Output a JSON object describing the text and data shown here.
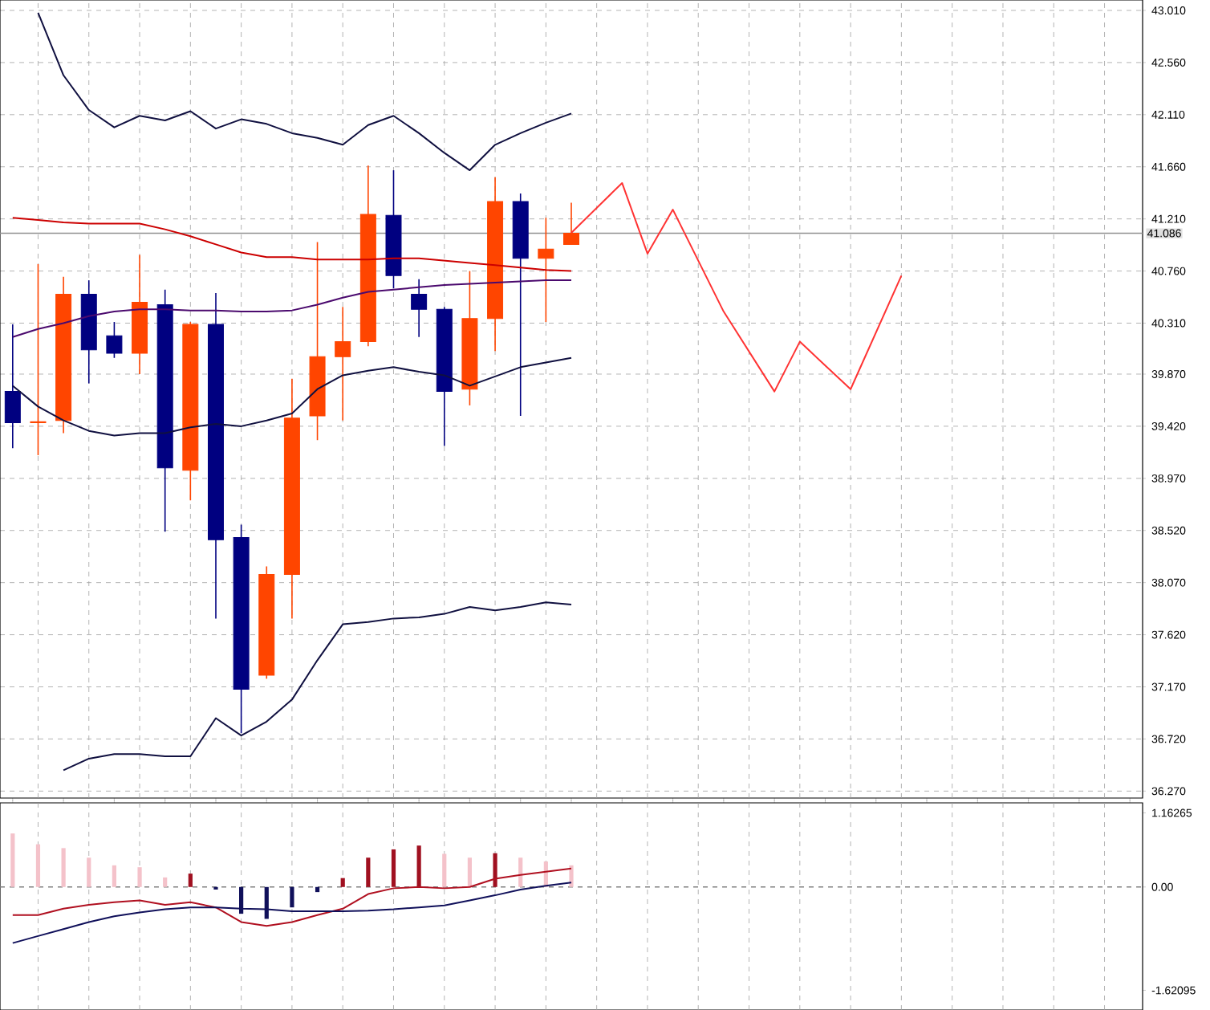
{
  "chart_data": [
    {
      "type": "candlestick",
      "categories": [
        null,
        null,
        null,
        null,
        null,
        null,
        null,
        null,
        null,
        null,
        null,
        null,
        null,
        null,
        null,
        null,
        null,
        null,
        null,
        null,
        null,
        null,
        null,
        null,
        null,
        null,
        null,
        null,
        null,
        null,
        null,
        null,
        null,
        null,
        null,
        null,
        null,
        null,
        null,
        null,
        null,
        null,
        null,
        null,
        null
      ],
      "ylim": [
        36.21,
        43.1
      ],
      "yticks": [
        {
          "value": 36.27,
          "label": "36.270"
        },
        {
          "value": 36.72,
          "label": "36.720"
        },
        {
          "value": 37.17,
          "label": "37.170"
        },
        {
          "value": 37.62,
          "label": "37.620"
        },
        {
          "value": 38.07,
          "label": "38.070"
        },
        {
          "value": 38.52,
          "label": "38.520"
        },
        {
          "value": 38.97,
          "label": "38.970"
        },
        {
          "value": 39.42,
          "label": "39.420"
        },
        {
          "value": 39.87,
          "label": "39.870"
        },
        {
          "value": 40.31,
          "label": "40.310"
        },
        {
          "value": 40.76,
          "label": "40.760"
        },
        {
          "value": 41.21,
          "label": "41.210"
        },
        {
          "value": 41.66,
          "label": "41.660"
        },
        {
          "value": 42.11,
          "label": "42.110"
        },
        {
          "value": 42.56,
          "label": "42.560"
        },
        {
          "value": 43.01,
          "label": "43.010"
        }
      ],
      "grid": true,
      "tick_labels": "y",
      "ref_lines": [
        {
          "axis": "y",
          "value": 41.086,
          "label": "41.086",
          "color": "#909090"
        }
      ],
      "series": [
        {
          "type": "line",
          "color": "#cc0000",
          "values": [
            41.22,
            41.2,
            41.18,
            41.17,
            41.17,
            41.17,
            41.12,
            41.06,
            40.99,
            40.92,
            40.88,
            40.88,
            40.86,
            40.86,
            40.86,
            40.87,
            40.87,
            40.85,
            40.83,
            40.81,
            40.79,
            40.77,
            40.76,
            null,
            null,
            null,
            null,
            null,
            null,
            null,
            null,
            null,
            null,
            null,
            null,
            null,
            null,
            null,
            null,
            null,
            null,
            null,
            null,
            null,
            null
          ]
        },
        {
          "type": "line",
          "color": "#4b0a6e",
          "values": [
            40.19,
            40.26,
            40.31,
            40.37,
            40.41,
            40.43,
            40.43,
            40.42,
            40.42,
            40.41,
            40.41,
            40.42,
            40.47,
            40.53,
            40.58,
            40.6,
            40.62,
            40.64,
            40.65,
            40.66,
            40.67,
            40.68,
            40.68,
            null,
            null,
            null,
            null,
            null,
            null,
            null,
            null,
            null,
            null,
            null,
            null,
            null,
            null,
            null,
            null,
            null,
            null,
            null,
            null,
            null,
            null
          ]
        },
        {
          "type": "line",
          "color": "#101040",
          "values": [
            null,
            42.99,
            42.45,
            42.15,
            42.0,
            42.1,
            42.06,
            42.14,
            41.99,
            42.07,
            42.03,
            41.95,
            41.91,
            41.85,
            42.02,
            42.1,
            41.95,
            41.78,
            41.63,
            41.85,
            41.95,
            42.04,
            42.12,
            null,
            null,
            null,
            null,
            null,
            null,
            null,
            null,
            null,
            null,
            null,
            null,
            null,
            null,
            null,
            null,
            null,
            null,
            null,
            null,
            null,
            null
          ]
        },
        {
          "type": "line",
          "color": "#101040",
          "values": [
            39.77,
            39.59,
            39.47,
            39.38,
            39.34,
            39.36,
            39.36,
            39.41,
            39.44,
            39.42,
            39.47,
            39.53,
            39.74,
            39.86,
            39.9,
            39.93,
            39.89,
            39.86,
            39.77,
            39.85,
            39.93,
            39.97,
            40.01,
            null,
            null,
            null,
            null,
            null,
            null,
            null,
            null,
            null,
            null,
            null,
            null,
            null,
            null,
            null,
            null,
            null,
            null,
            null,
            null,
            null,
            null
          ]
        },
        {
          "type": "line",
          "color": "#101040",
          "values": [
            null,
            null,
            36.45,
            36.55,
            36.59,
            36.59,
            36.57,
            36.57,
            36.9,
            36.75,
            36.87,
            37.06,
            37.4,
            37.71,
            37.73,
            37.76,
            37.77,
            37.8,
            37.86,
            37.83,
            37.86,
            37.9,
            37.88,
            null,
            null,
            null,
            null,
            null,
            null,
            null,
            null,
            null,
            null,
            null,
            null,
            null,
            null,
            null,
            null,
            null,
            null,
            null,
            null,
            null,
            null
          ]
        },
        {
          "type": "line",
          "color": "#ff3333",
          "values": [
            null,
            null,
            null,
            null,
            null,
            null,
            null,
            null,
            null,
            null,
            null,
            null,
            null,
            null,
            null,
            null,
            null,
            null,
            null,
            null,
            null,
            null,
            41.09,
            null,
            41.52,
            40.91,
            41.29,
            null,
            40.41,
            null,
            39.72,
            40.15,
            null,
            39.74,
            null,
            40.72,
            null,
            null,
            null,
            null,
            null,
            null,
            null,
            null,
            null
          ]
        },
        {
          "ohlc": [
            [
              39.72,
              40.3,
              39.23,
              39.45
            ],
            [
              39.45,
              40.82,
              39.17,
              39.46
            ],
            [
              39.47,
              40.71,
              39.36,
              40.56
            ],
            [
              40.56,
              40.68,
              39.79,
              40.08
            ],
            [
              40.2,
              40.32,
              40.01,
              40.05
            ],
            [
              40.05,
              40.9,
              39.87,
              40.49
            ],
            [
              40.47,
              40.6,
              38.51,
              39.06
            ],
            [
              39.04,
              40.32,
              38.78,
              40.3
            ],
            [
              40.3,
              40.57,
              37.76,
              38.44
            ],
            [
              38.46,
              38.57,
              36.77,
              37.15
            ],
            [
              37.27,
              38.21,
              37.24,
              38.14
            ],
            [
              38.14,
              39.83,
              37.76,
              39.49
            ],
            [
              39.51,
              41.01,
              39.3,
              40.02
            ],
            [
              40.02,
              40.45,
              39.47,
              40.15
            ],
            [
              40.15,
              41.67,
              40.11,
              41.25
            ],
            [
              41.24,
              41.63,
              40.61,
              40.72
            ],
            [
              40.56,
              40.69,
              40.19,
              40.43
            ],
            [
              40.43,
              40.45,
              39.25,
              39.72
            ],
            [
              39.74,
              40.76,
              39.6,
              40.35
            ],
            [
              40.35,
              41.57,
              40.07,
              41.36
            ],
            [
              41.36,
              41.43,
              39.51,
              40.87
            ],
            [
              40.87,
              41.22,
              40.32,
              40.95
            ],
            [
              40.99,
              41.35,
              40.99,
              41.086
            ],
            null,
            null,
            null,
            null,
            null,
            null,
            null,
            null,
            null,
            null,
            null,
            null,
            null,
            null,
            null,
            null,
            null,
            null,
            null,
            null,
            null,
            null
          ],
          "colors": [
            "#000080",
            "#ff4500",
            "#ff4500",
            "#000080",
            "#000080",
            "#ff4500",
            "#000080",
            "#ff4500",
            "#000080",
            "#000080",
            "#ff4500",
            "#ff4500",
            "#ff4500",
            "#ff4500",
            "#ff4500",
            "#000080",
            "#000080",
            "#000080",
            "#ff4500",
            "#ff4500",
            "#000080",
            "#ff4500",
            "#ff4500",
            null,
            null,
            null,
            null,
            null,
            null,
            null,
            null,
            null,
            null,
            null,
            null,
            null,
            null,
            null,
            null,
            null,
            null,
            null,
            null,
            null,
            null
          ]
        }
      ]
    },
    {
      "type": "bar",
      "categories": [
        null,
        null,
        null,
        null,
        null,
        null,
        null,
        null,
        null,
        null,
        null,
        null,
        null,
        null,
        null,
        null,
        null,
        null,
        null,
        null,
        null,
        null,
        null,
        null,
        null,
        null,
        null,
        null,
        null,
        null,
        null,
        null,
        null,
        null,
        null,
        null,
        null,
        null,
        null,
        null,
        null,
        null,
        null,
        null,
        null
      ],
      "ylim": [
        -1.93,
        1.32
      ],
      "yticks": [
        {
          "value": 1.16265,
          "label": "1.16265"
        },
        {
          "value": 0,
          "label": "0.00"
        },
        {
          "value": -1.62095,
          "label": "-1.62095"
        }
      ],
      "grid": "x",
      "tick_labels": "y",
      "ref_lines": [
        {
          "axis": "y",
          "value": 0,
          "color": "#808080",
          "line_style": "dashed"
        }
      ],
      "series": [
        {
          "values": [
            0.84,
            0.67,
            0.61,
            0.46,
            0.34,
            0.31,
            0.15,
            0.21,
            -0.04,
            -0.42,
            -0.5,
            -0.32,
            -0.08,
            0.14,
            0.46,
            0.59,
            0.65,
            0.52,
            0.46,
            0.53,
            0.46,
            0.4,
            0.34,
            null,
            null,
            null,
            null,
            null,
            null,
            null,
            null,
            null,
            null,
            null,
            null,
            null,
            null,
            null,
            null,
            null,
            null,
            null,
            null,
            null,
            null
          ],
          "colors": [
            "#f4c2ca",
            "#f4c2ca",
            "#f4c2ca",
            "#f4c2ca",
            "#f4c2ca",
            "#f4c2ca",
            "#f4c2ca",
            "#a01020",
            "#10105a",
            "#10105a",
            "#10105a",
            "#10105a",
            "#10105a",
            "#a01020",
            "#a01020",
            "#a01020",
            "#a01020",
            "#f4c2ca",
            "#f4c2ca",
            "#a01020",
            "#f4c2ca",
            "#f4c2ca",
            "#f4c2ca",
            null,
            null,
            null,
            null,
            null,
            null,
            null,
            null,
            null,
            null,
            null,
            null,
            null,
            null,
            null,
            null,
            null,
            null,
            null,
            null,
            null,
            null
          ]
        },
        {
          "type": "line",
          "color": "#b01020",
          "values": [
            -0.44,
            -0.44,
            -0.34,
            -0.28,
            -0.24,
            -0.21,
            -0.28,
            -0.24,
            -0.32,
            -0.55,
            -0.61,
            -0.55,
            -0.44,
            -0.34,
            -0.11,
            -0.02,
            0.0,
            -0.02,
            0.0,
            0.13,
            0.19,
            0.24,
            0.29,
            null,
            null,
            null,
            null,
            null,
            null,
            null,
            null,
            null,
            null,
            null,
            null,
            null,
            null,
            null,
            null,
            null,
            null,
            null,
            null,
            null,
            null
          ]
        },
        {
          "type": "line",
          "color": "#10105a",
          "values": [
            -0.88,
            -0.77,
            -0.66,
            -0.55,
            -0.46,
            -0.4,
            -0.35,
            -0.32,
            -0.32,
            -0.34,
            -0.35,
            -0.38,
            -0.38,
            -0.38,
            -0.37,
            -0.35,
            -0.32,
            -0.29,
            -0.21,
            -0.13,
            -0.04,
            0.02,
            0.07,
            null,
            null,
            null,
            null,
            null,
            null,
            null,
            null,
            null,
            null,
            null,
            null,
            null,
            null,
            null,
            null,
            null,
            null,
            null,
            null,
            null,
            null
          ]
        }
      ]
    }
  ]
}
